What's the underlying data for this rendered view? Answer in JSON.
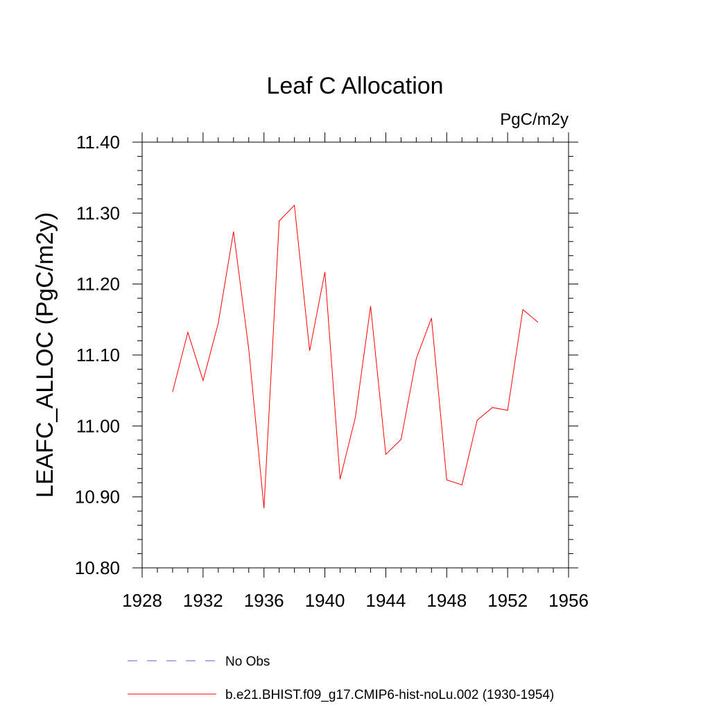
{
  "chart_data": {
    "type": "line",
    "title": "Leaf C Allocation",
    "units_label": "PgC/m2y",
    "ylabel": "LEAFC_ALLOC  (PgC/m2y)",
    "xlabel": "",
    "xlim": [
      1928,
      1956
    ],
    "ylim": [
      10.8,
      11.4
    ],
    "x_ticks": [
      1928,
      1932,
      1936,
      1940,
      1944,
      1948,
      1952,
      1956
    ],
    "y_ticks": [
      "10.80",
      "10.90",
      "11.00",
      "11.10",
      "11.20",
      "11.30",
      "11.40"
    ],
    "grid": false,
    "series": [
      {
        "name": "b.e21.BHIST.f09_g17.CMIP6-hist-noLu.002 (1930-1954)",
        "color": "#ff0000",
        "style": "solid",
        "x": [
          1930,
          1931,
          1932,
          1933,
          1934,
          1935,
          1936,
          1937,
          1938,
          1939,
          1940,
          1941,
          1942,
          1943,
          1944,
          1945,
          1946,
          1947,
          1948,
          1949,
          1950,
          1951,
          1952,
          1953,
          1954
        ],
        "y": [
          11.048,
          11.132,
          11.064,
          11.145,
          11.274,
          11.108,
          10.884,
          11.289,
          11.311,
          11.106,
          11.217,
          10.925,
          11.012,
          11.169,
          10.96,
          10.981,
          11.095,
          11.152,
          10.924,
          10.917,
          11.008,
          11.026,
          11.022,
          11.164,
          11.146
        ]
      }
    ],
    "legend": {
      "placement": "bottom-left",
      "entries": [
        {
          "label": "No Obs",
          "color": "#6a5acd",
          "style": "dashed"
        },
        {
          "label": "b.e21.BHIST.f09_g17.CMIP6-hist-noLu.002 (1930-1954)",
          "color": "#ff0000",
          "style": "solid"
        }
      ]
    }
  }
}
